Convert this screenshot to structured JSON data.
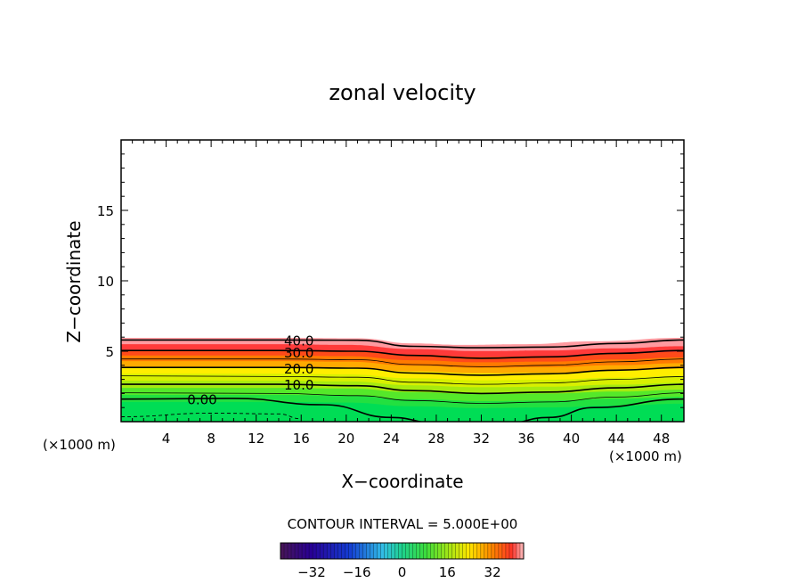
{
  "chart_data": {
    "type": "contour",
    "title": "zonal velocity",
    "xlabel": "X−coordinate",
    "ylabel": "Z−coordinate",
    "x_unit_left": "(×1000 m)",
    "x_unit_right": "(×1000 m)",
    "xlim": [
      0,
      50
    ],
    "ylim": [
      0,
      20
    ],
    "x_ticks": [
      4,
      8,
      12,
      16,
      20,
      24,
      28,
      32,
      36,
      40,
      44,
      48
    ],
    "y_ticks": [
      5,
      10,
      15
    ],
    "contour_interval_text": "CONTOUR INTERVAL = 5.000E+00",
    "contour_labels": [
      {
        "text": "40.0",
        "x": 15.8,
        "z": 5.8
      },
      {
        "text": "30.0",
        "x": 15.8,
        "z": 4.95
      },
      {
        "text": "20.0",
        "x": 15.8,
        "z": 3.8
      },
      {
        "text": "10.0",
        "x": 15.8,
        "z": 2.65
      },
      {
        "text": "0.00",
        "x": 7.2,
        "z": 1.6
      }
    ],
    "colorbar": {
      "range": [
        -43,
        43
      ],
      "tick_values": [
        -32,
        -16,
        0,
        16,
        32
      ],
      "tick_labels": [
        "−32",
        "−16",
        "0",
        "16",
        "32"
      ]
    },
    "colors": {
      "negative": "#3a58c8",
      "zero": "#00dd55",
      "low": "#55e82a",
      "mid": "#ffee00",
      "high": "#ff7a00",
      "top": "#ff3a3a",
      "edge": "#ff9aa0"
    }
  }
}
